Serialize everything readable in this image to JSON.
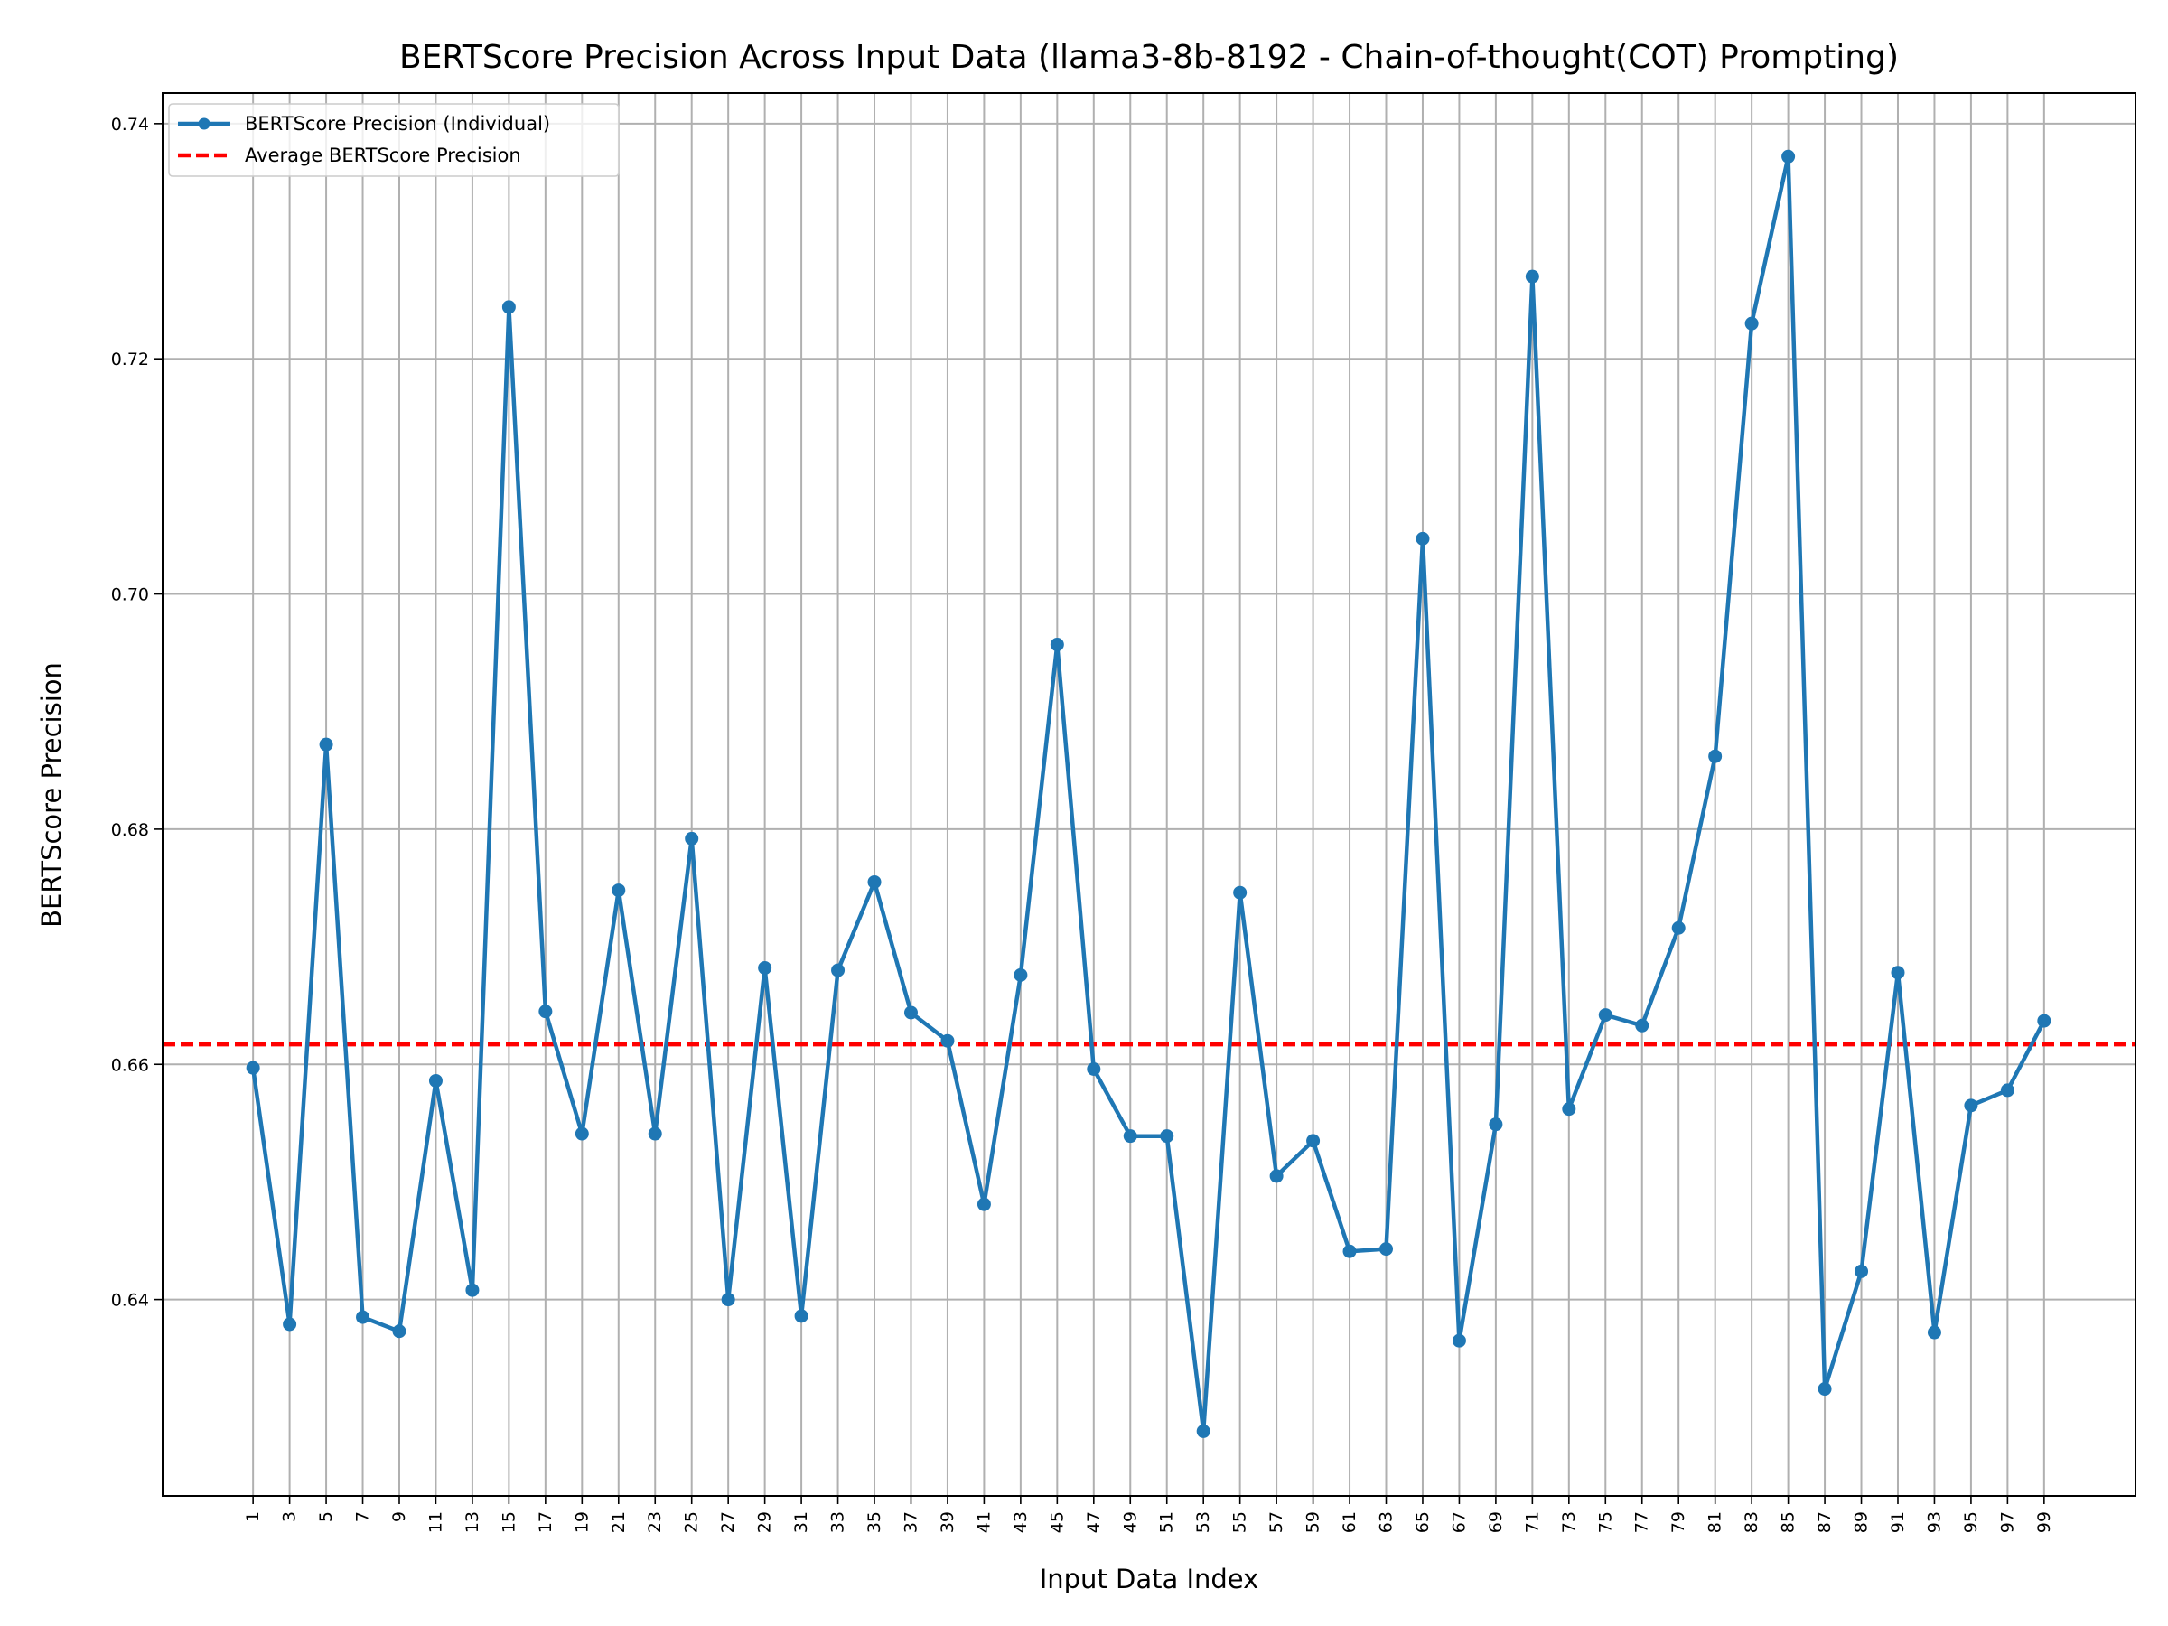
{
  "chart_data": {
    "type": "line",
    "title": "BERTScore Precision Across Input Data (llama3-8b-8192 - Chain-of-thought(COT) Prompting)",
    "xlabel": "Input Data Index",
    "ylabel": "BERTScore Precision",
    "x": [
      1,
      3,
      5,
      7,
      9,
      11,
      13,
      15,
      17,
      19,
      21,
      23,
      25,
      27,
      29,
      31,
      33,
      35,
      37,
      39,
      41,
      43,
      45,
      47,
      49,
      51,
      53,
      55,
      57,
      59,
      61,
      63,
      65,
      67,
      69,
      71,
      73,
      75,
      77,
      79,
      81,
      83,
      85,
      87,
      89,
      91,
      93,
      95,
      97,
      99
    ],
    "x_ticks": [
      1,
      3,
      5,
      7,
      9,
      11,
      13,
      15,
      17,
      19,
      21,
      23,
      25,
      27,
      29,
      31,
      33,
      35,
      37,
      39,
      41,
      43,
      45,
      47,
      49,
      51,
      53,
      55,
      57,
      59,
      61,
      63,
      65,
      67,
      69,
      71,
      73,
      75,
      77,
      79,
      81,
      83,
      85,
      87,
      89,
      91,
      93,
      95,
      97,
      99
    ],
    "y_ticks": [
      "0.64",
      "0.66",
      "0.68",
      "0.70",
      "0.72",
      "0.74"
    ],
    "y_tick_values": [
      0.64,
      0.66,
      0.68,
      0.7,
      0.72,
      0.74
    ],
    "xlim": [
      -3.95,
      104
    ],
    "ylim": [
      0.6233,
      0.7426
    ],
    "grid": true,
    "legend_position": "top-left",
    "series": [
      {
        "name": "BERTScore Precision (Individual)",
        "style": "solid-line-with-markers",
        "color": "#1f77b4",
        "values": [
          0.6597,
          0.6379,
          0.6872,
          0.6385,
          0.6373,
          0.6586,
          0.6408,
          0.7244,
          0.6645,
          0.6541,
          0.6748,
          0.6541,
          0.6792,
          0.64,
          0.6682,
          0.6386,
          0.668,
          0.6755,
          0.6644,
          0.662,
          0.6481,
          0.6676,
          0.6957,
          0.6596,
          0.6539,
          0.6539,
          0.6288,
          0.6746,
          0.6505,
          0.6535,
          0.6441,
          0.6443,
          0.7047,
          0.6365,
          0.6549,
          0.727,
          0.6562,
          0.6642,
          0.6633,
          0.6716,
          0.6862,
          0.723,
          0.7372,
          0.6324,
          0.6424,
          0.6678,
          0.6372,
          0.6565,
          0.6578,
          0.6637
        ]
      },
      {
        "name": "Average BERTScore Precision",
        "style": "dashed-line",
        "color": "#ff0000",
        "value": 0.6617
      }
    ]
  }
}
